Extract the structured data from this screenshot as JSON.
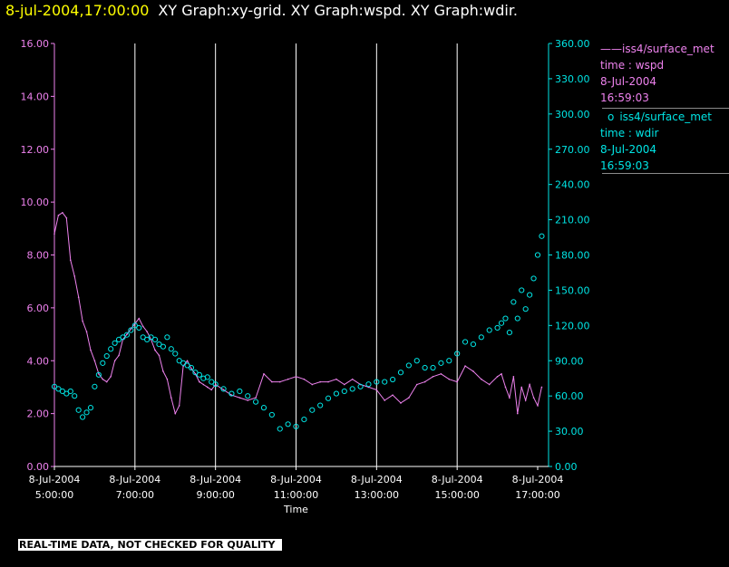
{
  "header": {
    "timestamp": "8-jul-2004,17:00:00",
    "titles": "XY Graph:xy-grid.  XY Graph:wspd.  XY Graph:wdir."
  },
  "legend": {
    "wspd": {
      "name": "iss4/surface_met",
      "line2": "time : wspd",
      "line3": "8-Jul-2004",
      "line4": "16:59:03",
      "symbol": "——"
    },
    "wdir": {
      "name": "iss4/surface_met",
      "line2": "time : wdir",
      "line3": "8-Jul-2004",
      "line4": "16:59:03",
      "symbol": "o"
    }
  },
  "banner": "REAL-TIME DATA, NOT CHECKED FOR QUALITY",
  "colors": {
    "wspd": "#ee82ee",
    "wdir": "#00e5e5",
    "grid": "#ffffff",
    "timestamp": "#ffff00"
  },
  "chart_data": {
    "type": "line",
    "xlabel": "Time",
    "x_ticks": [
      {
        "hour": 5,
        "date": "8-Jul-2004",
        "time": "5:00:00"
      },
      {
        "hour": 7,
        "date": "8-Jul-2004",
        "time": "7:00:00"
      },
      {
        "hour": 9,
        "date": "8-Jul-2004",
        "time": "9:00:00"
      },
      {
        "hour": 11,
        "date": "8-Jul-2004",
        "time": "11:00:00"
      },
      {
        "hour": 13,
        "date": "8-Jul-2004",
        "time": "13:00:00"
      },
      {
        "hour": 15,
        "date": "8-Jul-2004",
        "time": "15:00:00"
      },
      {
        "hour": 17,
        "date": "8-Jul-2004",
        "time": "17:00:00"
      }
    ],
    "xlim_hours": [
      5,
      17.27
    ],
    "vertical_grid_hours": [
      7,
      9,
      11,
      13,
      15
    ],
    "y_left": {
      "ylim": [
        0,
        16
      ],
      "ticks": [
        "0.00",
        "2.00",
        "4.00",
        "6.00",
        "8.00",
        "10.00",
        "12.00",
        "14.00",
        "16.00"
      ]
    },
    "y_right": {
      "ylim": [
        0,
        360
      ],
      "ticks": [
        "0.00",
        "30.00",
        "60.00",
        "90.00",
        "120.00",
        "150.00",
        "180.00",
        "210.00",
        "240.00",
        "270.00",
        "300.00",
        "330.00",
        "360.00"
      ]
    },
    "series": [
      {
        "name": "iss4/surface_met time : wspd",
        "axis": "left",
        "style": "line",
        "x_hours": [
          5.0,
          5.1,
          5.2,
          5.3,
          5.4,
          5.5,
          5.6,
          5.7,
          5.8,
          5.9,
          6.0,
          6.1,
          6.2,
          6.3,
          6.4,
          6.5,
          6.6,
          6.7,
          6.8,
          6.9,
          7.0,
          7.1,
          7.2,
          7.3,
          7.4,
          7.5,
          7.6,
          7.7,
          7.8,
          7.9,
          8.0,
          8.1,
          8.2,
          8.3,
          8.4,
          8.5,
          8.6,
          8.7,
          8.8,
          8.9,
          9.0,
          9.2,
          9.4,
          9.6,
          9.8,
          10.0,
          10.2,
          10.4,
          10.6,
          10.8,
          11.0,
          11.2,
          11.4,
          11.6,
          11.8,
          12.0,
          12.2,
          12.4,
          12.6,
          12.8,
          13.0,
          13.2,
          13.4,
          13.6,
          13.8,
          14.0,
          14.2,
          14.4,
          14.6,
          14.8,
          15.0,
          15.2,
          15.4,
          15.6,
          15.8,
          16.0,
          16.1,
          16.2,
          16.3,
          16.4,
          16.5,
          16.6,
          16.7,
          16.8,
          16.9,
          17.0,
          17.1
        ],
        "values": [
          8.8,
          9.5,
          9.6,
          9.4,
          7.8,
          7.2,
          6.4,
          5.5,
          5.1,
          4.4,
          4.0,
          3.5,
          3.3,
          3.2,
          3.4,
          4.0,
          4.2,
          4.8,
          5.0,
          5.2,
          5.4,
          5.6,
          5.3,
          5.1,
          4.8,
          4.4,
          4.2,
          3.6,
          3.3,
          2.6,
          2.0,
          2.3,
          3.8,
          4.0,
          3.7,
          3.5,
          3.2,
          3.1,
          3.0,
          2.9,
          3.1,
          2.9,
          2.7,
          2.6,
          2.5,
          2.6,
          3.5,
          3.2,
          3.2,
          3.3,
          3.4,
          3.3,
          3.1,
          3.2,
          3.2,
          3.3,
          3.1,
          3.3,
          3.1,
          3.0,
          2.9,
          2.5,
          2.7,
          2.4,
          2.6,
          3.1,
          3.2,
          3.4,
          3.5,
          3.3,
          3.2,
          3.8,
          3.6,
          3.3,
          3.1,
          3.4,
          3.5,
          3.0,
          2.6,
          3.4,
          2.0,
          3.0,
          2.5,
          3.1,
          2.6,
          2.3,
          3.0
        ]
      },
      {
        "name": "iss4/surface_met time : wdir",
        "axis": "right",
        "style": "circles",
        "x_hours": [
          5.0,
          5.1,
          5.2,
          5.3,
          5.4,
          5.5,
          5.6,
          5.7,
          5.8,
          5.9,
          6.0,
          6.1,
          6.2,
          6.3,
          6.4,
          6.5,
          6.6,
          6.7,
          6.8,
          6.9,
          7.0,
          7.1,
          7.2,
          7.3,
          7.4,
          7.5,
          7.6,
          7.7,
          7.8,
          7.9,
          8.0,
          8.1,
          8.2,
          8.3,
          8.4,
          8.5,
          8.6,
          8.7,
          8.8,
          8.9,
          9.0,
          9.2,
          9.4,
          9.6,
          9.8,
          10.0,
          10.2,
          10.4,
          10.6,
          10.8,
          11.0,
          11.2,
          11.4,
          11.6,
          11.8,
          12.0,
          12.2,
          12.4,
          12.6,
          12.8,
          13.0,
          13.2,
          13.4,
          13.6,
          13.8,
          14.0,
          14.2,
          14.4,
          14.6,
          14.8,
          15.0,
          15.2,
          15.4,
          15.6,
          15.8,
          16.0,
          16.1,
          16.2,
          16.3,
          16.4,
          16.5,
          16.6,
          16.7,
          16.8,
          16.9,
          17.0,
          17.1
        ],
        "values": [
          68,
          66,
          64,
          62,
          64,
          60,
          48,
          42,
          46,
          50,
          68,
          78,
          88,
          94,
          100,
          105,
          108,
          110,
          112,
          116,
          120,
          118,
          110,
          108,
          110,
          108,
          104,
          102,
          110,
          100,
          96,
          90,
          88,
          86,
          84,
          80,
          78,
          75,
          76,
          72,
          70,
          66,
          62,
          64,
          60,
          55,
          50,
          44,
          32,
          36,
          34,
          40,
          48,
          52,
          58,
          62,
          64,
          66,
          68,
          70,
          72,
          72,
          74,
          80,
          86,
          90,
          84,
          84,
          88,
          90,
          96,
          106,
          104,
          110,
          116,
          118,
          122,
          126,
          114,
          140,
          126,
          150,
          134,
          146,
          160,
          180,
          196
        ]
      }
    ]
  }
}
